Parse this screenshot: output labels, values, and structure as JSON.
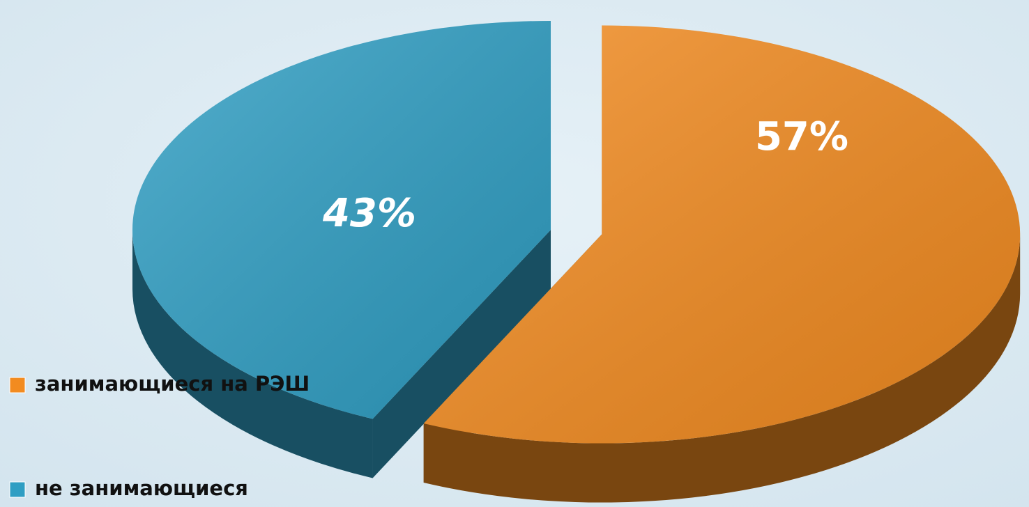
{
  "chart_data": {
    "type": "pie",
    "categories": [
      "занимающиеся на РЭШ",
      "не занимающиеся"
    ],
    "values": [
      57,
      43
    ],
    "value_labels": [
      "57%",
      "43%"
    ],
    "colors": [
      "#f28b20",
      "#2f9ec3"
    ],
    "legend": "bottom-left"
  }
}
